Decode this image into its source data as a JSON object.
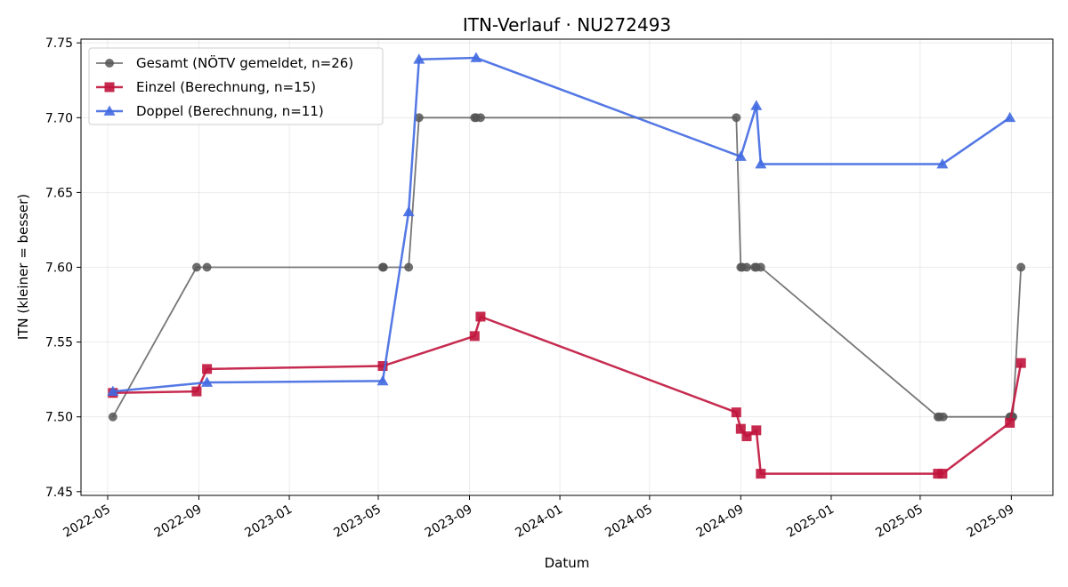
{
  "chart_data": {
    "type": "line",
    "title": "ITN-Verlauf · NU272493",
    "xlabel": "Datum",
    "ylabel": "ITN  (kleiner = besser)",
    "x_type": "date",
    "xlim": [
      "2022-03-26",
      "2025-10-27"
    ],
    "ylim": [
      7.4475,
      7.7525
    ],
    "x_ticks": [
      "2022-05-01",
      "2022-09-01",
      "2023-01-01",
      "2023-05-01",
      "2023-09-01",
      "2024-01-01",
      "2024-05-01",
      "2024-09-01",
      "2025-01-01",
      "2025-05-01",
      "2025-09-01"
    ],
    "x_tick_labels": [
      "2022-05",
      "2022-09",
      "2023-01",
      "2023-05",
      "2023-09",
      "2024-01",
      "2024-05",
      "2024-09",
      "2025-01",
      "2025-05",
      "2025-09"
    ],
    "y_ticks": [
      7.45,
      7.5,
      7.55,
      7.6,
      7.65,
      7.7,
      7.75
    ],
    "y_tick_labels": [
      "7.45",
      "7.50",
      "7.55",
      "7.60",
      "7.65",
      "7.70",
      "7.75"
    ],
    "grid": true,
    "legend_position": "top-left",
    "series": [
      {
        "name": "Gesamt (NÖTV gemeldet, n=26)",
        "color": "#555555",
        "marker": "circle",
        "points": [
          {
            "x": "2022-05-08",
            "y": 7.5
          },
          {
            "x": "2022-08-29",
            "y": 7.6
          },
          {
            "x": "2022-09-12",
            "y": 7.6
          },
          {
            "x": "2023-05-07",
            "y": 7.6
          },
          {
            "x": "2023-05-08",
            "y": 7.6
          },
          {
            "x": "2023-06-11",
            "y": 7.6
          },
          {
            "x": "2023-06-25",
            "y": 7.7
          },
          {
            "x": "2023-09-08",
            "y": 7.7
          },
          {
            "x": "2023-09-10",
            "y": 7.7
          },
          {
            "x": "2023-09-16",
            "y": 7.7
          },
          {
            "x": "2024-08-26",
            "y": 7.7
          },
          {
            "x": "2024-09-01",
            "y": 7.6
          },
          {
            "x": "2024-09-03",
            "y": 7.6
          },
          {
            "x": "2024-09-09",
            "y": 7.6
          },
          {
            "x": "2024-09-20",
            "y": 7.6
          },
          {
            "x": "2024-09-22",
            "y": 7.6
          },
          {
            "x": "2024-09-28",
            "y": 7.6
          },
          {
            "x": "2025-05-25",
            "y": 7.5
          },
          {
            "x": "2025-05-27",
            "y": 7.5
          },
          {
            "x": "2025-06-01",
            "y": 7.5
          },
          {
            "x": "2025-08-30",
            "y": 7.5
          },
          {
            "x": "2025-08-31",
            "y": 7.5
          },
          {
            "x": "2025-09-01",
            "y": 7.5
          },
          {
            "x": "2025-09-02",
            "y": 7.5
          },
          {
            "x": "2025-09-03",
            "y": 7.5
          },
          {
            "x": "2025-09-14",
            "y": 7.6
          }
        ]
      },
      {
        "name": "Einzel (Berechnung, n=15)",
        "color": "#c0143c",
        "marker": "square",
        "points": [
          {
            "x": "2022-05-08",
            "y": 7.516
          },
          {
            "x": "2022-08-29",
            "y": 7.517
          },
          {
            "x": "2022-09-12",
            "y": 7.532
          },
          {
            "x": "2023-05-07",
            "y": 7.534
          },
          {
            "x": "2023-09-08",
            "y": 7.554
          },
          {
            "x": "2023-09-16",
            "y": 7.567
          },
          {
            "x": "2024-08-26",
            "y": 7.503
          },
          {
            "x": "2024-09-01",
            "y": 7.492
          },
          {
            "x": "2024-09-09",
            "y": 7.487
          },
          {
            "x": "2024-09-22",
            "y": 7.491
          },
          {
            "x": "2024-09-28",
            "y": 7.462
          },
          {
            "x": "2025-05-25",
            "y": 7.462
          },
          {
            "x": "2025-05-31",
            "y": 7.462
          },
          {
            "x": "2025-08-30",
            "y": 7.496
          },
          {
            "x": "2025-09-14",
            "y": 7.536
          }
        ]
      },
      {
        "name": "Doppel (Berechnung, n=11)",
        "color": "#4169e1",
        "marker": "triangle",
        "points": [
          {
            "x": "2022-05-08",
            "y": 7.517
          },
          {
            "x": "2022-09-12",
            "y": 7.523
          },
          {
            "x": "2023-05-07",
            "y": 7.524
          },
          {
            "x": "2023-06-11",
            "y": 7.637
          },
          {
            "x": "2023-06-25",
            "y": 7.739
          },
          {
            "x": "2023-09-10",
            "y": 7.74
          },
          {
            "x": "2024-09-01",
            "y": 7.674
          },
          {
            "x": "2024-09-22",
            "y": 7.708
          },
          {
            "x": "2024-09-28",
            "y": 7.669
          },
          {
            "x": "2025-05-31",
            "y": 7.669
          },
          {
            "x": "2025-08-30",
            "y": 7.7
          }
        ]
      }
    ]
  }
}
